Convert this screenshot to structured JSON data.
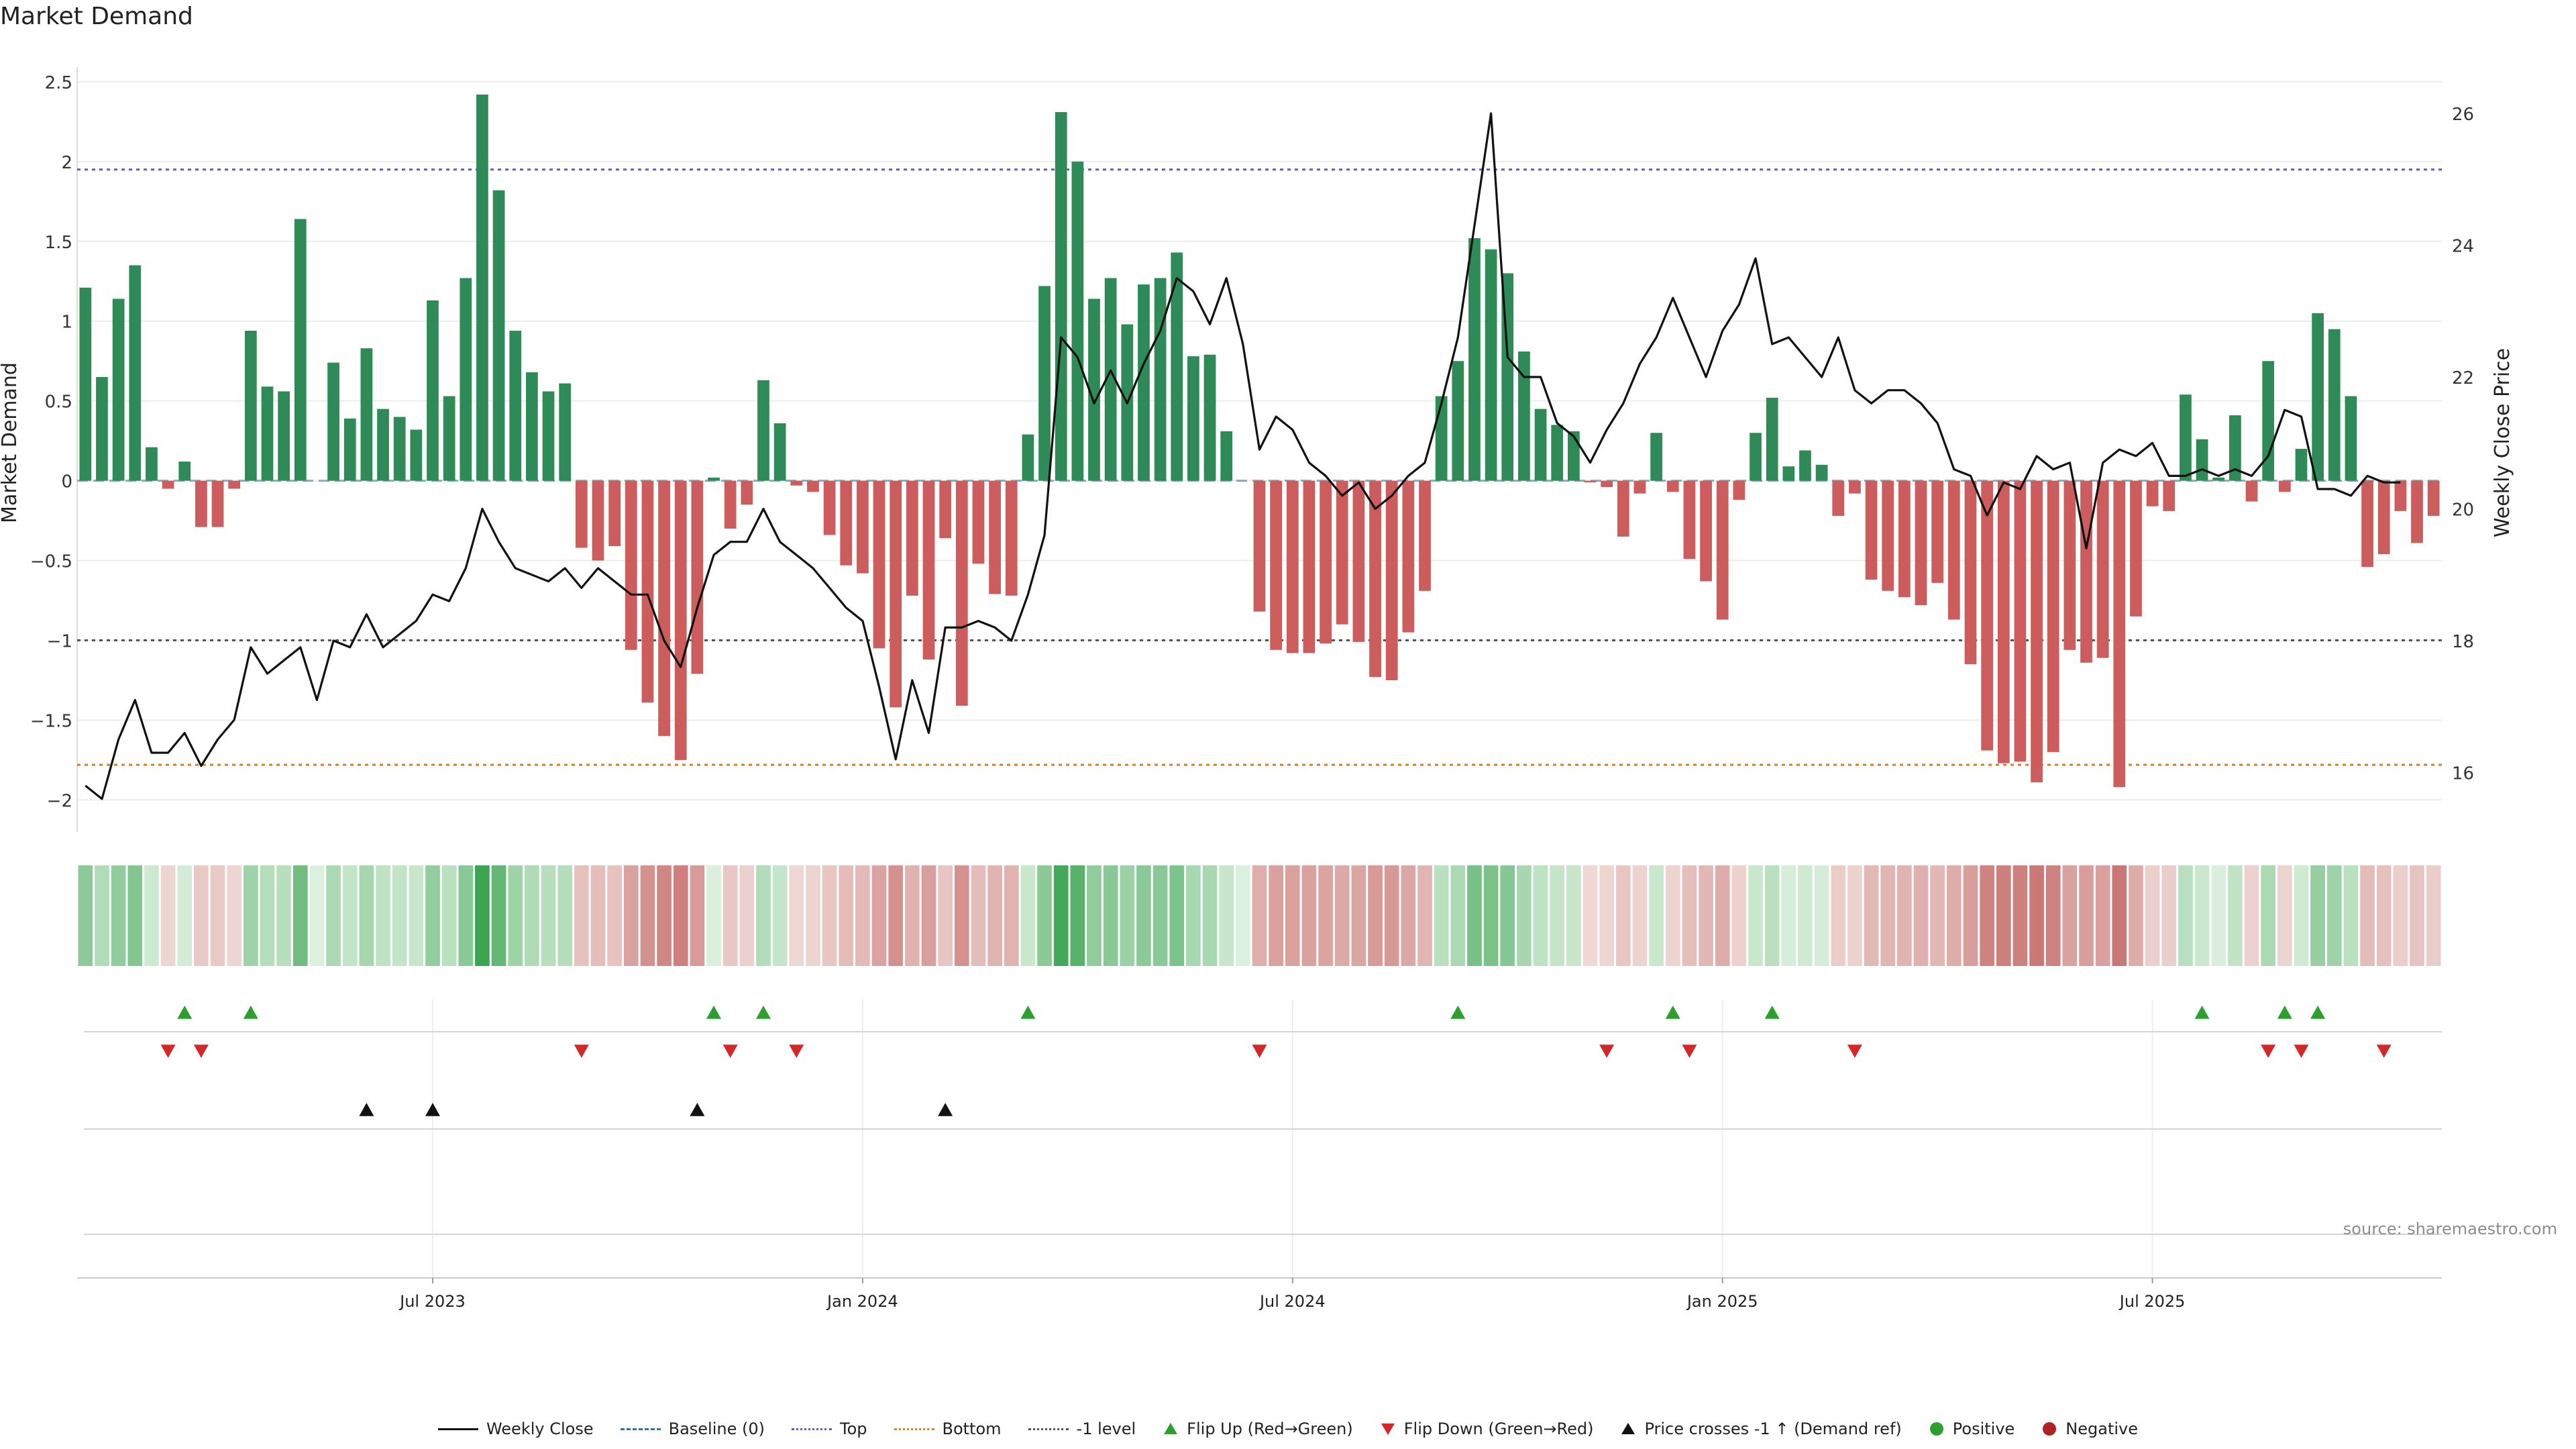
{
  "title": "Market Demand",
  "source": "source: sharemaestro.com",
  "chart_data": {
    "type": "bar",
    "title": "Market Demand",
    "ylabel": "Market Demand",
    "y2label": "Weekly Close Price",
    "ylim": [
      -2.2,
      2.55
    ],
    "y2lim": [
      15.1,
      26.6
    ],
    "yticks": [
      "2.5",
      "2",
      "1.5",
      "1",
      "0.5",
      "0",
      "−0.5",
      "−1",
      "−1.5",
      "−2"
    ],
    "yticks_values": [
      2.5,
      2,
      1.5,
      1,
      0.5,
      0,
      -0.5,
      -1,
      -1.5,
      -2
    ],
    "y2ticks": [
      "26",
      "24",
      "22",
      "20",
      "18",
      "16"
    ],
    "y2ticks_values": [
      26,
      24,
      22,
      20,
      18,
      16
    ],
    "xticks": [
      "Jul 2023",
      "Jan 2024",
      "Jul 2024",
      "Jan 2025",
      "Jul 2025"
    ],
    "xticks_index": [
      21,
      47,
      73,
      99,
      125
    ],
    "reference_lines": [
      {
        "name": "Baseline (0)",
        "value": 0,
        "color": "#1f77b4",
        "style": "dashed"
      },
      {
        "name": "Top",
        "value": 1.95,
        "color": "#5b5bd6",
        "style": "dotted"
      },
      {
        "name": "Bottom",
        "value": -1.78,
        "color": "#e07b1a",
        "style": "dotted"
      },
      {
        "name": "-1 level",
        "value": -1,
        "color": "#555555",
        "style": "dotted"
      }
    ],
    "demand": [
      1.21,
      0.65,
      1.14,
      1.35,
      0.21,
      -0.05,
      0.12,
      -0.29,
      -0.29,
      -0.05,
      0.94,
      0.59,
      0.56,
      1.64,
      0,
      0.74,
      0.39,
      0.83,
      0.45,
      0.4,
      0.32,
      1.13,
      0.53,
      1.27,
      2.42,
      1.82,
      0.94,
      0.68,
      0.56,
      0.61,
      -0.42,
      -0.5,
      -0.41,
      -1.06,
      -1.39,
      -1.6,
      -1.75,
      -1.21,
      0.02,
      -0.3,
      -0.15,
      0.63,
      0.36,
      -0.03,
      -0.07,
      -0.34,
      -0.53,
      -0.58,
      -1.05,
      -1.42,
      -0.72,
      -1.12,
      -0.36,
      -1.41,
      -0.52,
      -0.71,
      -0.72,
      0.29,
      1.22,
      2.31,
      2.0,
      1.14,
      1.27,
      0.98,
      1.23,
      1.27,
      1.43,
      0.78,
      0.79,
      0.31,
      0,
      -0.82,
      -1.06,
      -1.08,
      -1.08,
      -1.02,
      -0.9,
      -1.01,
      -1.23,
      -1.25,
      -0.95,
      -0.69,
      0.53,
      0.75,
      1.52,
      1.45,
      1.3,
      0.81,
      0.45,
      0.35,
      0.31,
      -0.01,
      -0.04,
      -0.35,
      -0.08,
      0.3,
      -0.07,
      -0.49,
      -0.63,
      -0.87,
      -0.12,
      0.3,
      0.52,
      0.09,
      0.19,
      0.1,
      -0.22,
      -0.08,
      -0.62,
      -0.69,
      -0.73,
      -0.78,
      -0.64,
      -0.87,
      -1.15,
      -1.69,
      -1.77,
      -1.76,
      -1.89,
      -1.7,
      -1.06,
      -1.14,
      -1.11,
      -1.92,
      -0.85,
      -0.16,
      -0.19,
      0.54,
      0.26,
      0.02,
      0.41,
      -0.13,
      0.75,
      -0.07,
      0.2,
      1.05,
      0.95,
      0.53,
      -0.54,
      -0.46,
      -0.19,
      -0.39,
      -0.22
    ],
    "price": [
      15.8,
      15.6,
      16.5,
      17.1,
      16.3,
      16.3,
      16.6,
      16.1,
      16.5,
      16.8,
      17.9,
      17.5,
      17.7,
      17.9,
      17.1,
      18.0,
      17.9,
      18.4,
      17.9,
      18.1,
      18.3,
      18.7,
      18.6,
      19.1,
      20.0,
      19.5,
      19.1,
      19.0,
      18.9,
      19.1,
      18.8,
      19.1,
      18.9,
      18.7,
      18.7,
      18.0,
      17.6,
      18.5,
      19.3,
      19.5,
      19.5,
      20.0,
      19.5,
      19.3,
      19.1,
      18.8,
      18.5,
      18.3,
      17.3,
      16.2,
      17.4,
      16.6,
      18.2,
      18.2,
      18.3,
      18.2,
      18.0,
      18.7,
      19.6,
      22.6,
      22.3,
      21.6,
      22.1,
      21.6,
      22.2,
      22.7,
      23.5,
      23.3,
      22.8,
      23.5,
      22.5,
      20.9,
      21.4,
      21.2,
      20.7,
      20.5,
      20.2,
      20.4,
      20.0,
      20.2,
      20.5,
      20.7,
      21.6,
      22.6,
      24.3,
      26.0,
      22.3,
      22.0,
      22.0,
      21.3,
      21.1,
      20.7,
      21.2,
      21.6,
      22.2,
      22.6,
      23.2,
      22.6,
      22.0,
      22.7,
      23.1,
      23.8,
      22.5,
      22.6,
      22.3,
      22.0,
      22.6,
      21.8,
      21.6,
      21.8,
      21.8,
      21.6,
      21.3,
      20.6,
      20.5,
      19.9,
      20.4,
      20.3,
      20.8,
      20.6,
      20.7,
      19.4,
      20.7,
      20.9,
      20.8,
      21.0,
      20.5,
      20.5,
      20.6,
      20.5,
      20.6,
      20.5,
      20.8,
      21.5,
      21.4,
      20.3,
      20.3,
      20.2,
      20.5,
      20.4,
      20.4
    ],
    "flip_up_index": [
      6,
      10,
      38,
      41,
      57,
      83,
      96,
      102,
      128,
      133,
      135
    ],
    "flip_down_index": [
      5,
      7,
      30,
      39,
      43,
      71,
      92,
      97,
      107,
      132,
      134,
      139
    ],
    "price_cross_index": [
      17,
      21,
      37,
      52
    ],
    "legend": [
      "Weekly Close",
      "Baseline (0)",
      "Top",
      "Bottom",
      "-1 level",
      "Flip Up (Red→Green)",
      "Flip Down (Green→Red)",
      "Price crosses -1 ↑ (Demand ref)",
      "Positive",
      "Negative"
    ]
  },
  "colors": {
    "positive": "#2e8b57",
    "negative": "#cd5c5c",
    "price": "#111111",
    "flip_up": "#2ca02c",
    "flip_down": "#d62728",
    "cross": "#111111",
    "positive_dot": "#2ca02c",
    "negative_dot": "#b22222"
  },
  "legend": {
    "weekly_close": "Weekly Close",
    "baseline": "Baseline (0)",
    "top": "Top",
    "bottom": "Bottom",
    "minus_one": "-1 level",
    "flip_up": "Flip Up (Red→Green)",
    "flip_down": "Flip Down (Green→Red)",
    "price_cross": "Price crosses -1 ↑ (Demand ref)",
    "positive": "Positive",
    "negative": "Negative"
  }
}
